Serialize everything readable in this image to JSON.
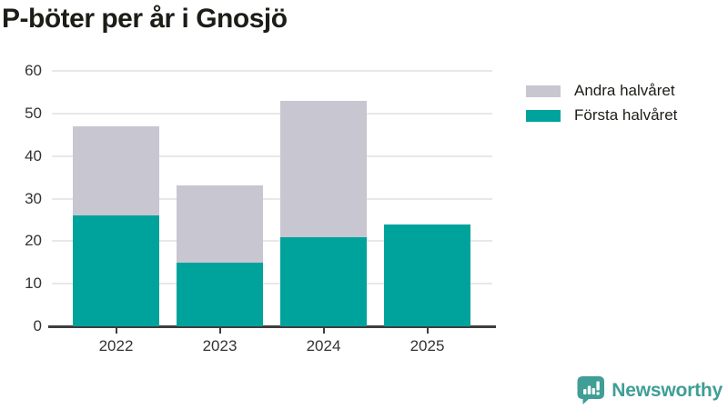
{
  "title": "P-böter per år i Gnosjö",
  "colors": {
    "first_half": "#00a39b",
    "second_half": "#c8c6d0",
    "axis": "#3d3d3d",
    "grid": "#e8e8e8",
    "title_text": "#1d1d18",
    "tick_text": "#333333",
    "logo": "#3f9e96"
  },
  "chart_data": {
    "type": "bar",
    "stacked": true,
    "title": "P-böter per år i Gnosjö",
    "categories": [
      "2022",
      "2023",
      "2024",
      "2025"
    ],
    "series": [
      {
        "name": "Andra halvåret",
        "color_key": "second_half",
        "values": [
          21,
          18,
          32,
          0
        ]
      },
      {
        "name": "Första halvåret",
        "color_key": "first_half",
        "values": [
          26,
          15,
          21,
          24
        ]
      }
    ],
    "xlabel": "",
    "ylabel": "",
    "ylim": [
      0,
      60
    ],
    "yticks": [
      0,
      10,
      20,
      30,
      40,
      50,
      60
    ],
    "grid": true,
    "legend_position": "top-right"
  },
  "footer": {
    "brand": "Newsworthy"
  }
}
